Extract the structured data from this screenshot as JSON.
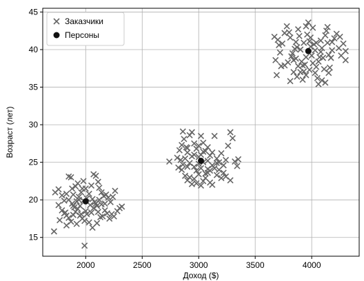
{
  "chart_data": {
    "type": "scatter",
    "title": "",
    "xlabel": "Доход ($)",
    "ylabel": "Возраст (лет)",
    "xlim": [
      1620,
      4420
    ],
    "ylim": [
      12.5,
      45.5
    ],
    "xticks": [
      2000,
      2500,
      3000,
      3500,
      4000
    ],
    "yticks": [
      15,
      20,
      25,
      30,
      35,
      40,
      45
    ],
    "grid": true,
    "legend_position": "top-left",
    "colors": {
      "customers": "#666666",
      "personas": "#111111"
    },
    "series": [
      {
        "name": "Заказчики",
        "marker": "x",
        "points": [
          [
            1720,
            15.8
          ],
          [
            1990,
            13.9
          ],
          [
            1730,
            21.0
          ],
          [
            1760,
            21.4
          ],
          [
            1790,
            20.6
          ],
          [
            1810,
            19.9
          ],
          [
            1830,
            20.8
          ],
          [
            1850,
            23.1
          ],
          [
            1870,
            23.0
          ],
          [
            1880,
            21.5
          ],
          [
            1890,
            20.7
          ],
          [
            1910,
            21.8
          ],
          [
            1930,
            22.2
          ],
          [
            1940,
            20.0
          ],
          [
            1960,
            21.0
          ],
          [
            1980,
            22.5
          ],
          [
            2000,
            21.5
          ],
          [
            2030,
            20.8
          ],
          [
            2050,
            21.9
          ],
          [
            2070,
            23.4
          ],
          [
            2090,
            23.2
          ],
          [
            2110,
            22.4
          ],
          [
            2120,
            21.6
          ],
          [
            2140,
            21.0
          ],
          [
            2160,
            20.5
          ],
          [
            2180,
            20.7
          ],
          [
            2200,
            20.3
          ],
          [
            2220,
            19.7
          ],
          [
            2240,
            20.4
          ],
          [
            2260,
            21.2
          ],
          [
            2280,
            18.5
          ],
          [
            2300,
            18.9
          ],
          [
            2320,
            19.1
          ],
          [
            1760,
            19.3
          ],
          [
            1790,
            18.6
          ],
          [
            1810,
            18.2
          ],
          [
            1830,
            17.9
          ],
          [
            1850,
            17.6
          ],
          [
            1870,
            17.1
          ],
          [
            1890,
            18.0
          ],
          [
            1910,
            18.4
          ],
          [
            1930,
            18.8
          ],
          [
            1950,
            17.9
          ],
          [
            1970,
            17.5
          ],
          [
            1990,
            17.2
          ],
          [
            2010,
            18.1
          ],
          [
            2030,
            17.0
          ],
          [
            2050,
            18.3
          ],
          [
            2070,
            18.9
          ],
          [
            2090,
            19.5
          ],
          [
            2110,
            18.4
          ],
          [
            2130,
            17.7
          ],
          [
            2150,
            17.8
          ],
          [
            2170,
            18.6
          ],
          [
            2190,
            18.2
          ],
          [
            2210,
            17.5
          ],
          [
            2230,
            18.1
          ],
          [
            2250,
            17.8
          ],
          [
            1770,
            17.3
          ],
          [
            1830,
            16.6
          ],
          [
            1920,
            16.8
          ],
          [
            2060,
            16.3
          ],
          [
            2100,
            16.9
          ],
          [
            1850,
            20.0
          ],
          [
            1880,
            19.5
          ],
          [
            1900,
            19.0
          ],
          [
            1920,
            19.8
          ],
          [
            1950,
            19.2
          ],
          [
            1980,
            19.9
          ],
          [
            2010,
            20.2
          ],
          [
            2040,
            19.3
          ],
          [
            2060,
            20.1
          ],
          [
            2080,
            19.7
          ],
          [
            2100,
            19.2
          ],
          [
            2120,
            20.0
          ],
          [
            2140,
            19.4
          ],
          [
            2170,
            19.5
          ],
          [
            1940,
            20.4
          ],
          [
            1970,
            21.5
          ],
          [
            2000,
            18.5
          ],
          [
            1820,
            18.3
          ],
          [
            1890,
            19.2
          ],
          [
            1960,
            18.1
          ],
          [
            2740,
            25.1
          ],
          [
            2810,
            25.6
          ],
          [
            2830,
            26.6
          ],
          [
            2850,
            27.3
          ],
          [
            2860,
            29.1
          ],
          [
            2870,
            28.1
          ],
          [
            2890,
            27.0
          ],
          [
            2900,
            26.3
          ],
          [
            2920,
            28.6
          ],
          [
            2940,
            29.0
          ],
          [
            2960,
            27.5
          ],
          [
            2980,
            26.8
          ],
          [
            3000,
            27.2
          ],
          [
            3020,
            26.0
          ],
          [
            3040,
            27.6
          ],
          [
            3060,
            26.5
          ],
          [
            3080,
            27.0
          ],
          [
            3100,
            25.9
          ],
          [
            3120,
            26.3
          ],
          [
            3140,
            28.5
          ],
          [
            3160,
            25.5
          ],
          [
            3180,
            25.0
          ],
          [
            3200,
            26.2
          ],
          [
            3220,
            24.6
          ],
          [
            3240,
            25.3
          ],
          [
            3260,
            27.2
          ],
          [
            3280,
            29.0
          ],
          [
            3300,
            28.2
          ],
          [
            3320,
            25.1
          ],
          [
            3340,
            24.5
          ],
          [
            3350,
            25.4
          ],
          [
            2840,
            25.3
          ],
          [
            2860,
            24.7
          ],
          [
            2880,
            25.5
          ],
          [
            2900,
            24.4
          ],
          [
            2920,
            24.9
          ],
          [
            2940,
            25.8
          ],
          [
            2960,
            24.4
          ],
          [
            2980,
            23.9
          ],
          [
            3000,
            24.8
          ],
          [
            3020,
            24.2
          ],
          [
            3040,
            25.0
          ],
          [
            3060,
            23.5
          ],
          [
            3080,
            24.1
          ],
          [
            3100,
            23.9
          ],
          [
            3120,
            24.6
          ],
          [
            3140,
            24.2
          ],
          [
            3160,
            23.3
          ],
          [
            3180,
            24.0
          ],
          [
            3200,
            22.9
          ],
          [
            3220,
            23.6
          ],
          [
            3240,
            23.1
          ],
          [
            3280,
            22.6
          ],
          [
            2880,
            23.2
          ],
          [
            2900,
            22.6
          ],
          [
            2920,
            23.0
          ],
          [
            2940,
            22.1
          ],
          [
            2960,
            22.8
          ],
          [
            2980,
            22.2
          ],
          [
            3000,
            23.4
          ],
          [
            3020,
            21.9
          ],
          [
            3040,
            22.5
          ],
          [
            3060,
            22.9
          ],
          [
            3080,
            23.6
          ],
          [
            3100,
            22.3
          ],
          [
            3120,
            22.0
          ],
          [
            2820,
            24.3
          ],
          [
            2850,
            24.0
          ],
          [
            2960,
            26.0
          ],
          [
            3000,
            25.7
          ],
          [
            3040,
            26.4
          ],
          [
            3080,
            25.2
          ],
          [
            2900,
            26.9
          ],
          [
            3020,
            28.5
          ],
          [
            3160,
            24.9
          ],
          [
            3670,
            41.7
          ],
          [
            3680,
            38.6
          ],
          [
            3690,
            36.6
          ],
          [
            3700,
            41.3
          ],
          [
            3710,
            40.6
          ],
          [
            3720,
            39.6
          ],
          [
            3740,
            40.8
          ],
          [
            3760,
            42.2
          ],
          [
            3780,
            43.1
          ],
          [
            3800,
            42.3
          ],
          [
            3810,
            41.6
          ],
          [
            3820,
            39.1
          ],
          [
            3830,
            39.5
          ],
          [
            3840,
            38.6
          ],
          [
            3850,
            40.1
          ],
          [
            3860,
            41.0
          ],
          [
            3870,
            40.3
          ],
          [
            3880,
            42.7
          ],
          [
            3890,
            41.8
          ],
          [
            3900,
            40.0
          ],
          [
            3910,
            38.4
          ],
          [
            3920,
            37.9
          ],
          [
            3930,
            37.1
          ],
          [
            3940,
            38.0
          ],
          [
            3950,
            39.0
          ],
          [
            3960,
            42.0
          ],
          [
            3970,
            43.6
          ],
          [
            3980,
            41.1
          ],
          [
            3990,
            40.4
          ],
          [
            4000,
            39.2
          ],
          [
            4010,
            42.9
          ],
          [
            4020,
            40.7
          ],
          [
            4030,
            39.9
          ],
          [
            4040,
            37.7
          ],
          [
            4050,
            36.2
          ],
          [
            4060,
            38.4
          ],
          [
            4070,
            39.0
          ],
          [
            4080,
            41.2
          ],
          [
            4090,
            40.2
          ],
          [
            4100,
            38.9
          ],
          [
            4110,
            37.4
          ],
          [
            4120,
            41.9
          ],
          [
            4130,
            42.5
          ],
          [
            4140,
            40.9
          ],
          [
            4150,
            39.3
          ],
          [
            4160,
            37.6
          ],
          [
            4170,
            38.9
          ],
          [
            4180,
            39.9
          ],
          [
            4200,
            41.5
          ],
          [
            4220,
            42.1
          ],
          [
            4240,
            40.2
          ],
          [
            4260,
            39.2
          ],
          [
            4280,
            40.8
          ],
          [
            4300,
            38.6
          ],
          [
            3760,
            37.9
          ],
          [
            3790,
            38.3
          ],
          [
            3810,
            35.8
          ],
          [
            3840,
            37.0
          ],
          [
            3860,
            38.8
          ],
          [
            3880,
            37.8
          ],
          [
            3900,
            37.0
          ],
          [
            3920,
            36.0
          ],
          [
            3950,
            36.6
          ],
          [
            3980,
            37.3
          ],
          [
            4010,
            38.2
          ],
          [
            4030,
            36.9
          ],
          [
            4060,
            35.4
          ],
          [
            4090,
            35.9
          ],
          [
            4120,
            35.6
          ],
          [
            4150,
            36.9
          ],
          [
            3730,
            37.8
          ],
          [
            3930,
            40.9
          ],
          [
            3990,
            41.6
          ],
          [
            4040,
            40.9
          ],
          [
            4080,
            39.7
          ],
          [
            4140,
            43.0
          ],
          [
            3950,
            43.1
          ],
          [
            4180,
            41.0
          ],
          [
            3870,
            36.4
          ],
          [
            4250,
            41.7
          ],
          [
            4300,
            39.8
          ]
        ]
      },
      {
        "name": "Персоны",
        "marker": "o",
        "points": [
          [
            2000,
            19.8
          ],
          [
            3020,
            25.2
          ],
          [
            3970,
            39.8
          ]
        ]
      }
    ]
  }
}
